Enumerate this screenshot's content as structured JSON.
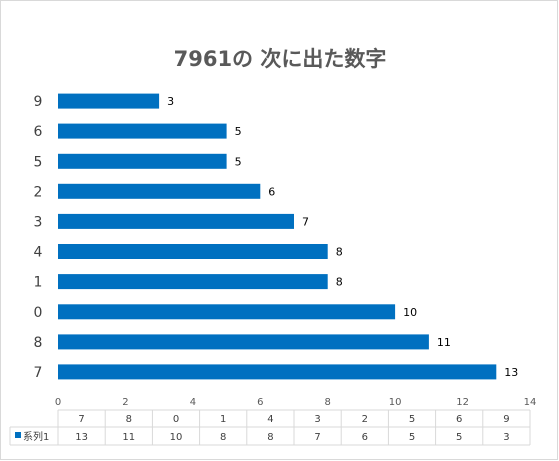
{
  "chart_data": {
    "type": "bar",
    "orientation": "horizontal",
    "title": "7961の 次に出た数字",
    "categories": [
      "7",
      "8",
      "0",
      "1",
      "4",
      "3",
      "2",
      "5",
      "6",
      "9"
    ],
    "series": [
      {
        "name": "系列1",
        "values": [
          13,
          11,
          10,
          8,
          8,
          7,
          6,
          5,
          5,
          3
        ],
        "color": "#0070c0"
      }
    ],
    "xlim": [
      0,
      14
    ],
    "xticks": [
      0,
      2,
      4,
      6,
      8,
      10,
      12,
      14
    ],
    "grid": false,
    "legend": "data-table",
    "data_table": true
  }
}
